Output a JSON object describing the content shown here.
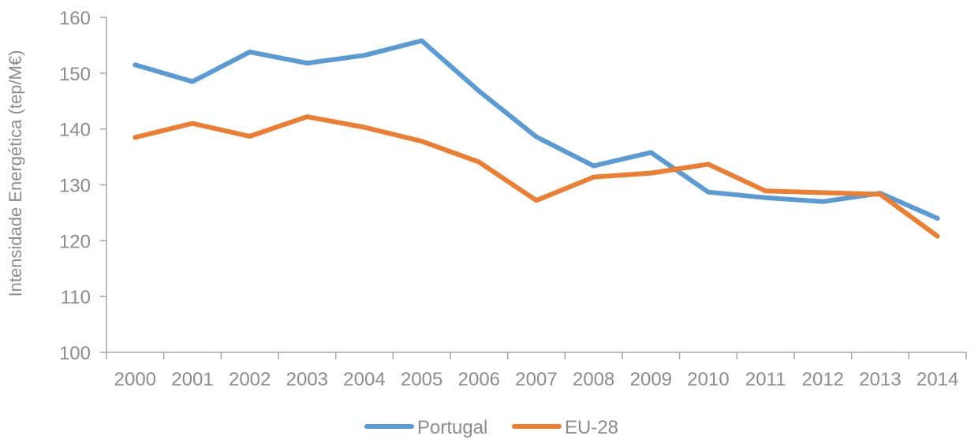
{
  "chart_data": {
    "type": "line",
    "title": "",
    "xlabel": "",
    "ylabel": "Intensidade Energética (tep/M€)",
    "categories": [
      "2000",
      "2001",
      "2002",
      "2003",
      "2004",
      "2005",
      "2006",
      "2007",
      "2008",
      "2009",
      "2010",
      "2011",
      "2012",
      "2013",
      "2014"
    ],
    "ylim": [
      100,
      160
    ],
    "yticks": [
      100,
      110,
      120,
      130,
      140,
      150,
      160
    ],
    "grid": false,
    "legend_position": "bottom",
    "series": [
      {
        "name": "Portugal",
        "color": "#5b9bd5",
        "values": [
          151.5,
          148.5,
          153.8,
          151.8,
          153.2,
          155.8,
          146.8,
          138.6,
          133.4,
          135.8,
          128.7,
          127.7,
          127.0,
          128.5,
          124.0
        ]
      },
      {
        "name": "EU-28",
        "color": "#ed7d31",
        "values": [
          138.5,
          141.0,
          138.7,
          142.2,
          140.3,
          137.8,
          134.1,
          127.2,
          131.4,
          132.1,
          133.7,
          128.9,
          128.6,
          128.3,
          120.8
        ]
      }
    ]
  }
}
